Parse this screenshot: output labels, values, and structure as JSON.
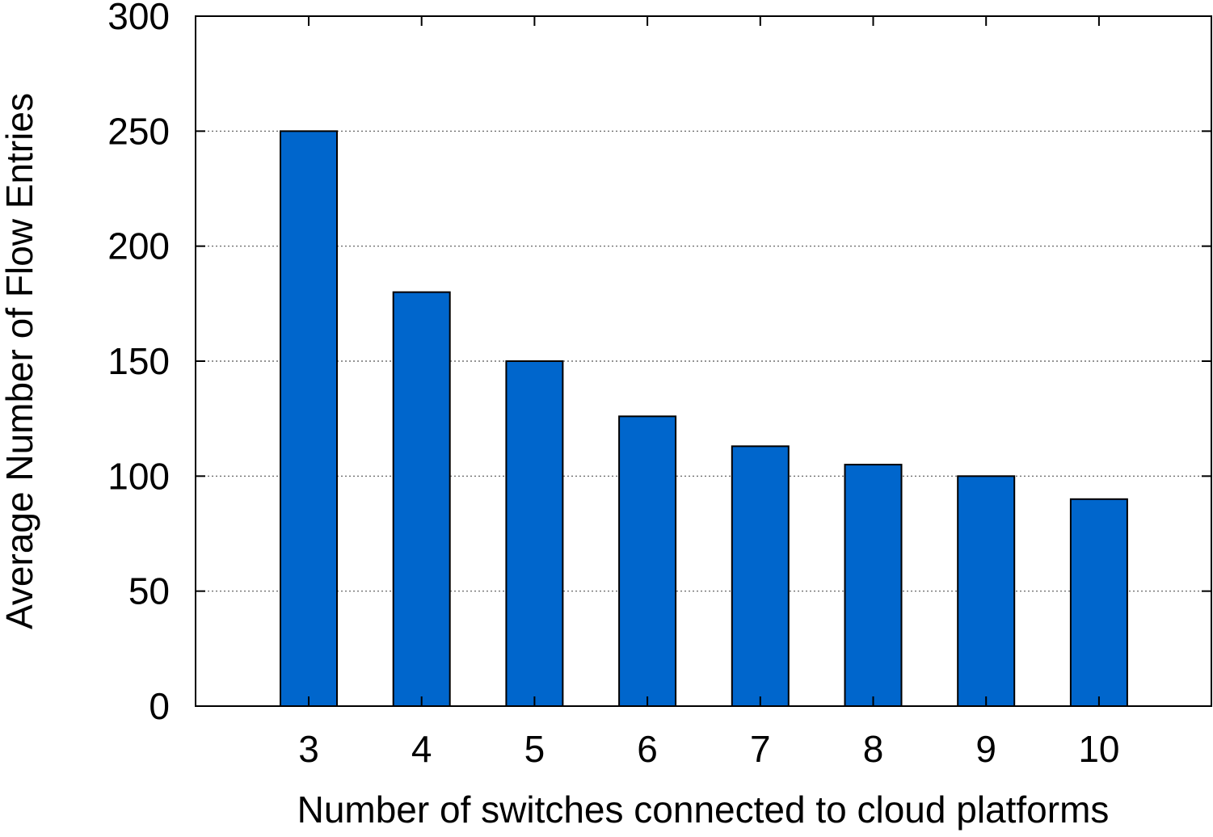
{
  "chart_data": {
    "type": "bar",
    "xlabel": "Number of switches connected to cloud platforms",
    "ylabel": "Average Number of Flow Entries",
    "categories": [
      "3",
      "4",
      "5",
      "6",
      "7",
      "8",
      "9",
      "10"
    ],
    "values": [
      250,
      180,
      150,
      126,
      113,
      105,
      100,
      90
    ],
    "ylim": [
      0,
      300
    ],
    "yticks": [
      "0",
      "50",
      "100",
      "150",
      "200",
      "250",
      "300"
    ],
    "grid": true,
    "bar_color": "#0066cc"
  }
}
